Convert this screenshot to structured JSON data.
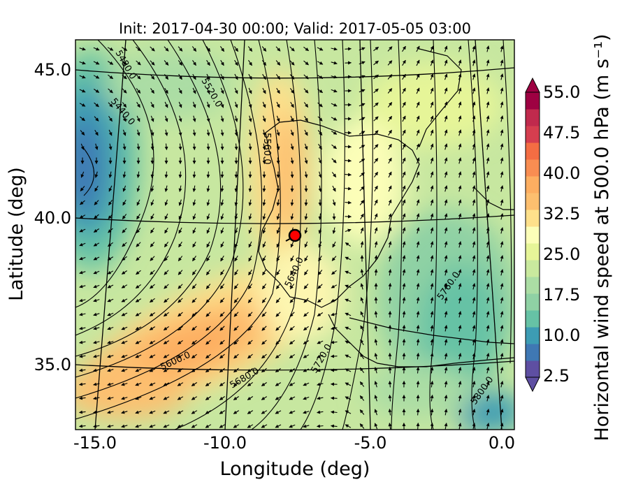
{
  "title": "Init: 2017-04-30 00:00; Valid: 2017-05-05 03:00",
  "xlabel": "Longitude (deg)",
  "ylabel": "Latitude (deg)",
  "x_ticks": [
    "-15.0",
    "-10.0",
    "-5.0",
    "0.0"
  ],
  "y_ticks": [
    "45.0",
    "40.0",
    "35.0"
  ],
  "colorbar": {
    "label": "Horizontal wind speed at 500.0 hPa (m s⁻¹)",
    "ticks": [
      "55.0",
      "47.5",
      "40.0",
      "32.5",
      "25.0",
      "17.5",
      "10.0",
      "2.5"
    ],
    "range": [
      2.5,
      55.0
    ],
    "extend": "both",
    "colormap": "Spectral_r",
    "colors": [
      "#5e4fa2",
      "#3f78b4",
      "#3d9cb4",
      "#66c2a5",
      "#8fd1a4",
      "#abdda4",
      "#c9e99e",
      "#e6f598",
      "#fcfeb8",
      "#fee08b",
      "#fdbf6f",
      "#fdae61",
      "#f88d52",
      "#f46d43",
      "#d53e4f",
      "#c02a4d",
      "#9e0142"
    ]
  },
  "contour_labels": [
    "5480.0",
    "5520.0",
    "5440.0",
    "5560.0",
    "5600.0",
    "5640.0",
    "5680.0",
    "5720.0",
    "5760.0",
    "5800.0"
  ],
  "marker": {
    "label": "point",
    "lon": -7.6,
    "lat": 39.3,
    "color": "#ff0000"
  },
  "map": {
    "projection": "lambert-conformal",
    "lon_range": [
      -16.0,
      0.2
    ],
    "lat_range": [
      32.6,
      46.0
    ],
    "field": "500 hPa horizontal wind speed (filled), geopotential height (contours), wind vectors (arrows)",
    "wind_maximum_region": "southwest of Iberian Peninsula, ~ -11 lon, 35.5 lat, ~42 m/s",
    "wind_minimum_region": "northwest, ~ -15 lon, 42 lat, ~5 m/s"
  }
}
